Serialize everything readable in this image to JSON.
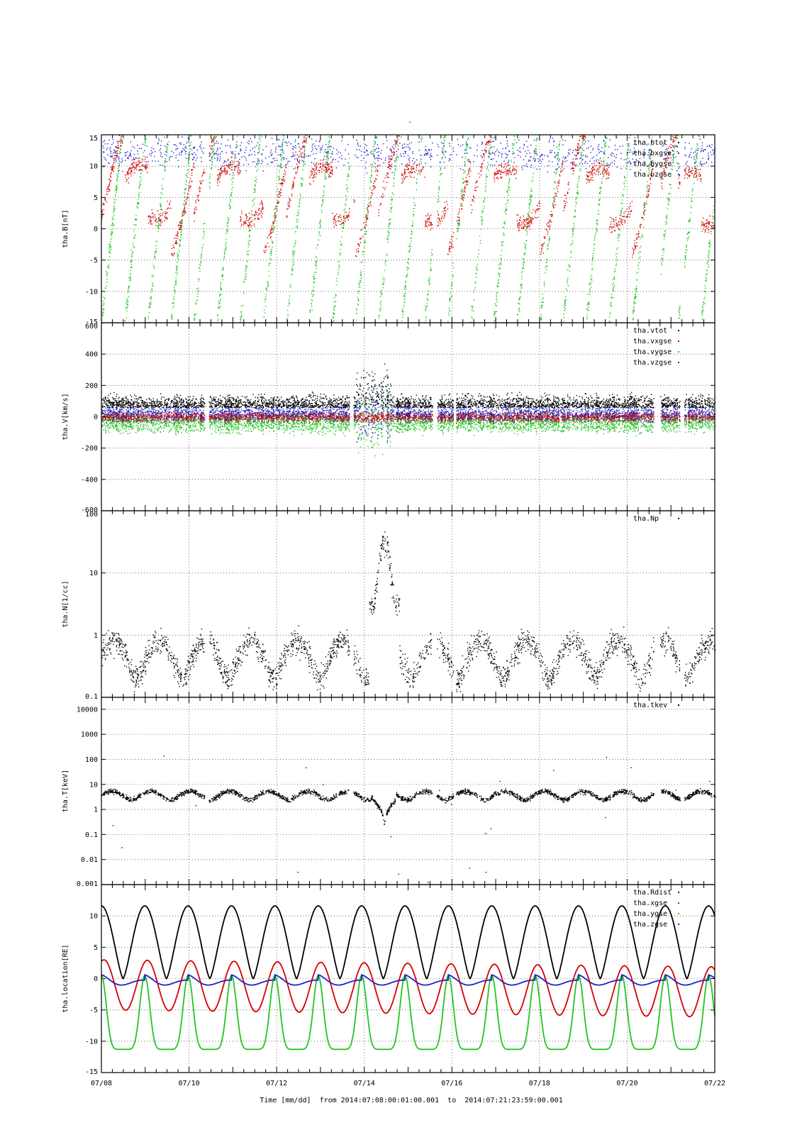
{
  "figure": {
    "top_mark": "-",
    "xlabel": "Time [mm/dd]  from 2014:07:08:00:01:00.001  to  2014:07:21:23:59:00.001"
  },
  "colors": {
    "black": "#000000",
    "red": "#d40000",
    "green": "#22c522",
    "blue": "#1e24c8",
    "grid": "#555555"
  },
  "chart_data": [
    {
      "type": "scatter",
      "ylabel": "tha.B[nT]",
      "ylim": [
        -15,
        15
      ],
      "yticks": [
        "15",
        "10",
        "5",
        "0",
        "-5",
        "-10",
        "-15"
      ],
      "x_range_days": [
        0,
        14
      ],
      "legend_placement": "top-right",
      "series": [
        {
          "name": "tha.btot",
          "color": "black"
        },
        {
          "name": "tha.bxgse",
          "color": "red"
        },
        {
          "name": "tha.bygse",
          "color": "green"
        },
        {
          "name": "tha.bzgse",
          "color": "blue"
        }
      ]
    },
    {
      "type": "scatter",
      "ylabel": "tha.V[km/s]",
      "ylim": [
        -600,
        600
      ],
      "yticks": [
        "600",
        "400",
        "200",
        "0",
        "-200",
        "-400",
        "-600"
      ],
      "x_range_days": [
        0,
        14
      ],
      "legend_placement": "top-right",
      "series": [
        {
          "name": "tha.vtot",
          "color": "black"
        },
        {
          "name": "tha.vxgse",
          "color": "red"
        },
        {
          "name": "tha.vygse",
          "color": "green"
        },
        {
          "name": "tha.vzgse",
          "color": "blue"
        }
      ]
    },
    {
      "type": "scatter",
      "ylabel": "tha.N[1/cc]",
      "yscale": "log",
      "ylim": [
        0.1,
        100
      ],
      "yticks": [
        "100",
        "10",
        "1",
        "0.1"
      ],
      "x_range_days": [
        0,
        14
      ],
      "legend_placement": "top-right",
      "series": [
        {
          "name": "tha.Np",
          "color": "black"
        }
      ]
    },
    {
      "type": "scatter",
      "ylabel": "tha.T[keV]",
      "yscale": "log",
      "ylim": [
        0.001,
        30000
      ],
      "yticks": [
        "10000",
        "1000",
        "100",
        "10",
        "1",
        "0.1",
        "0.01",
        "0.001"
      ],
      "x_range_days": [
        0,
        14
      ],
      "legend_placement": "top-right",
      "series": [
        {
          "name": "tha.tkev",
          "color": "black"
        }
      ]
    },
    {
      "type": "line",
      "ylabel": "tha.location[RE]",
      "ylim": [
        -15,
        15
      ],
      "yticks": [
        "10",
        "5",
        "0",
        "-5",
        "-10",
        "-15"
      ],
      "x_range_days": [
        0,
        14
      ],
      "legend_placement": "top-right",
      "series": [
        {
          "name": "tha.Rdist",
          "color": "black"
        },
        {
          "name": "tha.xgse",
          "color": "red"
        },
        {
          "name": "tha.ygse",
          "color": "green"
        },
        {
          "name": "tha.zgse",
          "color": "blue"
        }
      ]
    }
  ],
  "xaxis": {
    "ticks": [
      "07/08",
      "07/10",
      "07/12",
      "07/14",
      "07/16",
      "07/18",
      "07/20",
      "07/22"
    ],
    "range": [
      "07/08",
      "07/22"
    ]
  }
}
